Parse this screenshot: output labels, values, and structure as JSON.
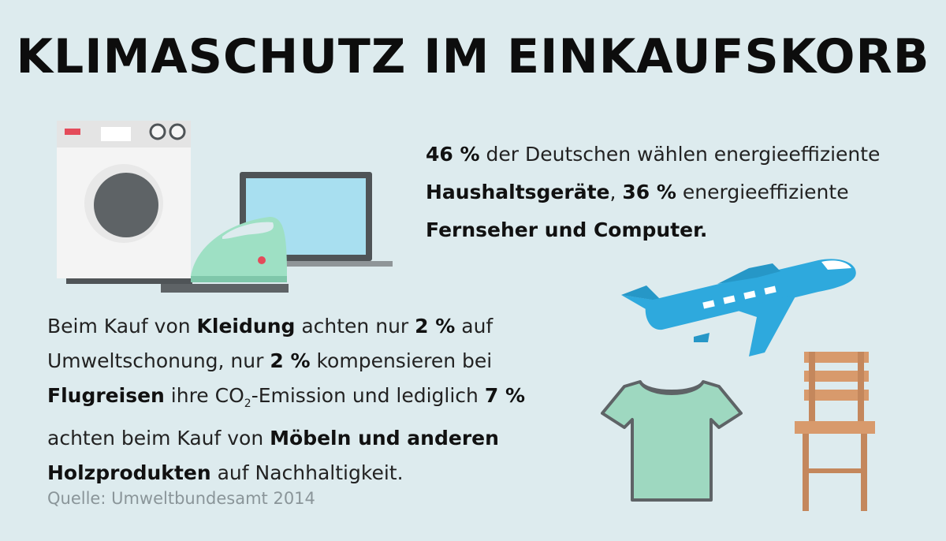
{
  "title": "KLIMASCHUTZ IM EINKAUFSKORB",
  "block1": {
    "pct1": "46 %",
    "t1": " der Deutschen wählen  energieeffiziente ",
    "b1": "Haushaltsgeräte",
    "t2": ", ",
    "pct2": "36 %",
    "t3": "  energieeffiziente ",
    "b2": "Fernseher und Computer."
  },
  "block2": {
    "t1": "Beim Kauf von ",
    "b1": "Kleidung",
    "t2": " achten nur ",
    "pct1": "2 %",
    "t3": " auf Umweltschonung, nur ",
    "pct2": "2 %",
    "t4": " kompensieren bei ",
    "b2": "Flugreisen",
    "t5": " ihre CO",
    "sub": "2",
    "t6": "-Emission und lediglich ",
    "pct3": "7 %",
    "t7": " achten beim Kauf von ",
    "b3": "Möbeln und anderen Holzprodukten",
    "t8": " auf Nachhaltigkeit."
  },
  "source": "Quelle: Umweltbundesamt 2014",
  "colors": {
    "background": "#ddebee",
    "plane": "#2ea9dd",
    "shirt": "#9ed8c0",
    "chair": "#d89a6c",
    "iron": "#9ee0c4",
    "screen": "#a8dff0"
  }
}
